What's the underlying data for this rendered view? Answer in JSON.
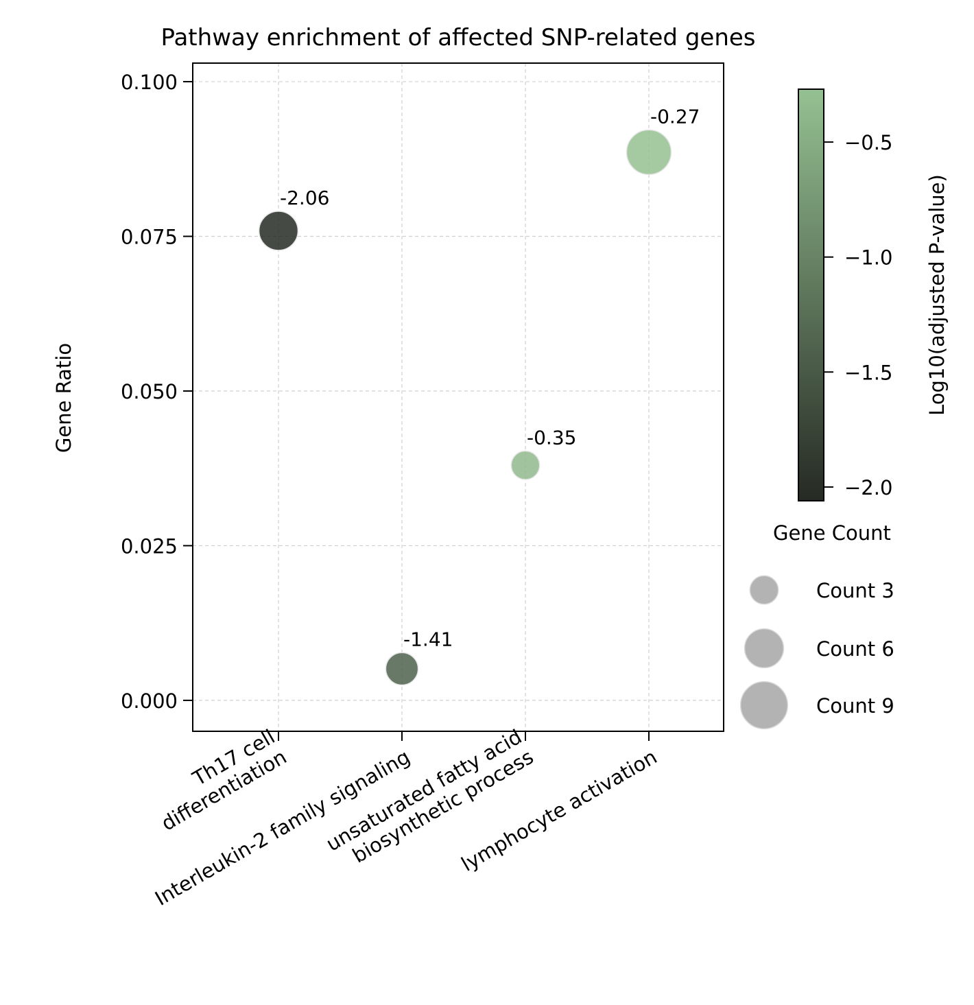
{
  "chart_data": {
    "type": "scatter",
    "title": "Pathway enrichment of affected SNP-related genes",
    "xlabel": "",
    "ylabel": "Gene Ratio",
    "ylim": [
      -0.005,
      0.103
    ],
    "yticks": [
      "0.000",
      "0.025",
      "0.050",
      "0.075",
      "0.100"
    ],
    "grid": true,
    "categories": [
      [
        "Th17 cell",
        "differentiation"
      ],
      [
        "Interleukin-2 family signaling"
      ],
      [
        "unsaturated fatty acid",
        "biosynthetic process"
      ],
      [
        "lymphocyte activation"
      ]
    ],
    "points": [
      {
        "gene_ratio": 0.0759,
        "log10_padj": -2.06,
        "count": 6,
        "label": "-2.06"
      },
      {
        "gene_ratio": 0.0051,
        "log10_padj": -1.41,
        "count": 4,
        "label": "-1.41"
      },
      {
        "gene_ratio": 0.038,
        "log10_padj": -0.35,
        "count": 3,
        "label": "-0.35"
      },
      {
        "gene_ratio": 0.0886,
        "log10_padj": -0.27,
        "count": 8,
        "label": "-0.27"
      }
    ],
    "colorbar": {
      "label": "Log10(adjusted P-value)",
      "range": [
        -2.06,
        -0.27
      ],
      "ticks": [
        "−0.5",
        "−1.0",
        "−1.5",
        "−2.0"
      ],
      "tick_values": [
        -0.5,
        -1.0,
        -1.5,
        -2.0
      ],
      "color_low": "#262a24",
      "color_high": "#95c192"
    },
    "size_legend": {
      "title": "Gene Count",
      "entries": [
        {
          "count": 3,
          "label": "Count 3"
        },
        {
          "count": 6,
          "label": "Count 6"
        },
        {
          "count": 9,
          "label": "Count 9"
        }
      ],
      "marker_color": "#b3b3b3"
    }
  }
}
